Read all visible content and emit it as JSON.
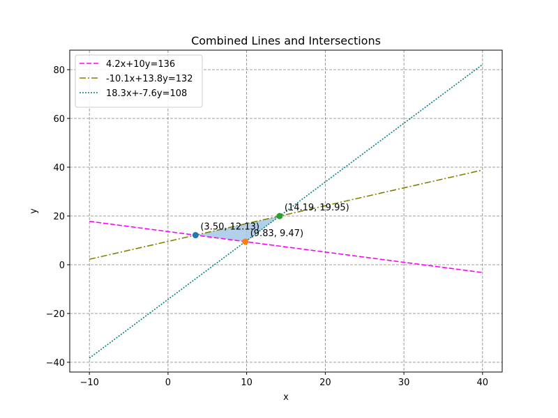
{
  "chart_data": {
    "type": "line",
    "title": "Combined Lines and Intersections",
    "xlabel": "x",
    "ylabel": "y",
    "xlim": [
      -12.5,
      42.5
    ],
    "ylim": [
      -44.0,
      88.0
    ],
    "x_ticks": [
      -10,
      0,
      10,
      20,
      30,
      40
    ],
    "x_tick_labels": [
      "−10",
      "0",
      "10",
      "20",
      "30",
      "40"
    ],
    "y_ticks": [
      -40,
      -20,
      0,
      20,
      40,
      60,
      80
    ],
    "y_tick_labels": [
      "−40",
      "−20",
      "0",
      "20",
      "40",
      "60",
      "80"
    ],
    "grid": true,
    "legend_position": "upper-left",
    "series": [
      {
        "name": "4.2x+10y=136",
        "x": [
          -10,
          40
        ],
        "y": [
          17.8,
          -3.2
        ],
        "color": "#ff00ff",
        "style": "dashed"
      },
      {
        "name": "-10.1x+13.8y=132",
        "x": [
          -10,
          40
        ],
        "y": [
          2.25,
          38.84
        ],
        "color": "#808000",
        "style": "dashdot"
      },
      {
        "name": "18.3x+-7.6y=108",
        "x": [
          -10,
          40
        ],
        "y": [
          -38.29,
          82.11
        ],
        "color": "#008080",
        "style": "dotted"
      }
    ],
    "intersections": [
      {
        "x": 3.5,
        "y": 12.13,
        "label": "(3.50, 12.13)",
        "color": "#1f77b4"
      },
      {
        "x": 9.83,
        "y": 9.47,
        "label": "(9.83, 9.47)",
        "color": "#ff7f0e"
      },
      {
        "x": 14.19,
        "y": 19.95,
        "label": "(14.19, 19.95)",
        "color": "#2ca02c"
      }
    ],
    "shaded_region": {
      "color": "#a6c8e6",
      "vertices": [
        [
          3.5,
          12.13
        ],
        [
          9.83,
          9.47
        ],
        [
          14.19,
          19.95
        ]
      ]
    }
  }
}
